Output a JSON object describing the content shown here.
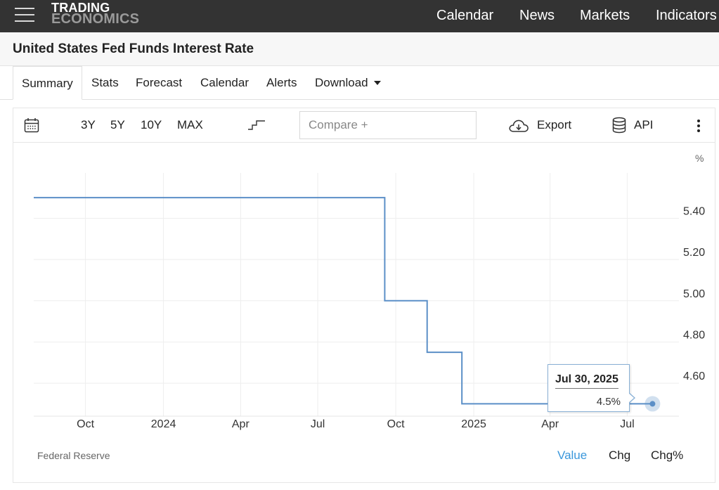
{
  "brand": {
    "line1": "TRADING",
    "line2": "ECONOMICS"
  },
  "nav": [
    "Calendar",
    "News",
    "Markets",
    "Indicators"
  ],
  "page_title": "United States Fed Funds Interest Rate",
  "tabs": [
    {
      "label": "Summary",
      "active": true
    },
    {
      "label": "Stats"
    },
    {
      "label": "Forecast"
    },
    {
      "label": "Calendar"
    },
    {
      "label": "Alerts"
    },
    {
      "label": "Download",
      "dropdown": true
    }
  ],
  "toolbar": {
    "calendar_icon": "calendar-icon",
    "ranges": [
      "3Y",
      "5Y",
      "10Y",
      "MAX"
    ],
    "chart_type_icon": "step-line-icon",
    "compare_placeholder": "Compare +",
    "export_label": "Export",
    "export_icon": "cloud-download-icon",
    "api_label": "API",
    "api_icon": "database-icon",
    "more_icon": "more-vertical-icon"
  },
  "colors": {
    "nav_bg": "#333333",
    "series": "#5b8fc7",
    "link_active": "#3a97db"
  },
  "chart_data": {
    "type": "line",
    "step": true,
    "unit": "%",
    "x_start": "2023-08-01",
    "x_end": "2025-08-31",
    "x_ticks": [
      {
        "date": "2023-10-01",
        "label": "Oct"
      },
      {
        "date": "2024-01-01",
        "label": "2024"
      },
      {
        "date": "2024-04-01",
        "label": "Apr"
      },
      {
        "date": "2024-07-01",
        "label": "Jul"
      },
      {
        "date": "2024-10-01",
        "label": "Oct"
      },
      {
        "date": "2025-01-01",
        "label": "2025"
      },
      {
        "date": "2025-04-01",
        "label": "Apr"
      },
      {
        "date": "2025-07-01",
        "label": "Jul"
      }
    ],
    "y_ticks": [
      4.6,
      4.8,
      5.0,
      5.2,
      5.4
    ],
    "y_tick_labels": [
      "4.60",
      "4.80",
      "5.00",
      "5.20",
      "5.40"
    ],
    "ylim": [
      4.44,
      5.62
    ],
    "grid": true,
    "series": [
      {
        "points": [
          {
            "date": "2023-08-01",
            "value": 5.5
          },
          {
            "date": "2024-09-18",
            "value": 5.0
          },
          {
            "date": "2024-11-07",
            "value": 4.75
          },
          {
            "date": "2024-12-18",
            "value": 4.5
          },
          {
            "date": "2025-07-30",
            "value": 4.5
          }
        ]
      }
    ],
    "tooltip": {
      "date": "Jul 30, 2025",
      "value": "4.5%"
    }
  },
  "footer": {
    "source": "Federal Reserve",
    "views": [
      "Value",
      "Chg",
      "Chg%"
    ],
    "active_view": "Value"
  }
}
